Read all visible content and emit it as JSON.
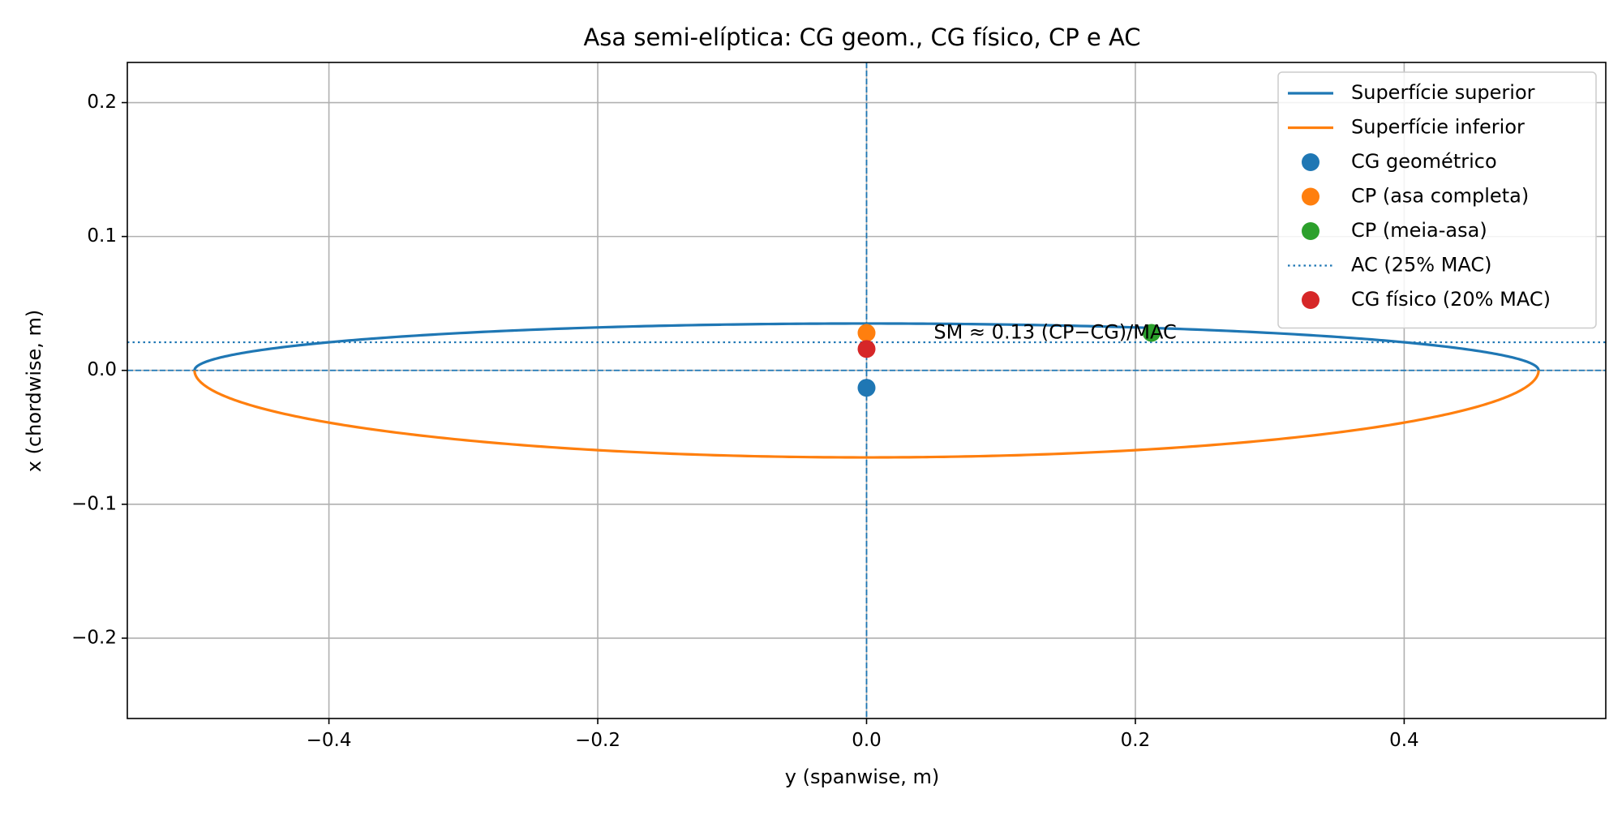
{
  "chart_data": {
    "type": "line",
    "title": "Asa semi-elíptica: CG geom., CG físico, CP e AC",
    "xlabel": "y (spanwise, m)",
    "ylabel": "x (chordwise, m)",
    "xlim": [
      -0.55,
      0.55
    ],
    "ylim": [
      -0.26,
      0.23
    ],
    "xticks": [
      -0.4,
      -0.2,
      0.0,
      0.2,
      0.4
    ],
    "xtick_labels": [
      "−0.4",
      "−0.2",
      "0.0",
      "0.2",
      "0.4"
    ],
    "yticks": [
      -0.2,
      -0.1,
      0.0,
      0.1,
      0.2
    ],
    "ytick_labels": [
      "−0.2",
      "−0.1",
      "0.0",
      "0.1",
      "0.2"
    ],
    "grid": true,
    "legend_position": "top-right",
    "series": [
      {
        "name": "Superfície superior",
        "kind": "line",
        "color": "#1f77b4",
        "shape": "semi-ellipse",
        "span_half": 0.5,
        "peak": 0.035
      },
      {
        "name": "Superfície inferior",
        "kind": "line",
        "color": "#ff7f0e",
        "shape": "semi-ellipse",
        "span_half": 0.5,
        "peak": -0.065
      },
      {
        "name": "CG geométrico",
        "kind": "point",
        "color": "#1f77b4",
        "x": 0.0,
        "y": -0.013
      },
      {
        "name": "CP (asa completa)",
        "kind": "point",
        "color": "#ff7f0e",
        "x": 0.0,
        "y": 0.028
      },
      {
        "name": "CP (meia-asa)",
        "kind": "point",
        "color": "#2ca02c",
        "x": 0.212,
        "y": 0.028
      },
      {
        "name": "AC (25% MAC)",
        "kind": "hline",
        "color": "#1f77b4",
        "style": "dotted",
        "y": 0.021
      },
      {
        "name": "CG físico (20% MAC)",
        "kind": "point",
        "color": "#d62728",
        "x": 0.0,
        "y": 0.016
      }
    ],
    "reference_lines": [
      {
        "orientation": "horizontal",
        "value": 0.0,
        "style": "dashed",
        "color": "#1f77b4"
      },
      {
        "orientation": "vertical",
        "value": 0.0,
        "style": "dashed",
        "color": "#1f77b4"
      }
    ],
    "annotations": [
      {
        "text": "SM ≈ 0.13 (CP−CG)/MAC",
        "x": 0.05,
        "y": 0.028
      }
    ]
  }
}
